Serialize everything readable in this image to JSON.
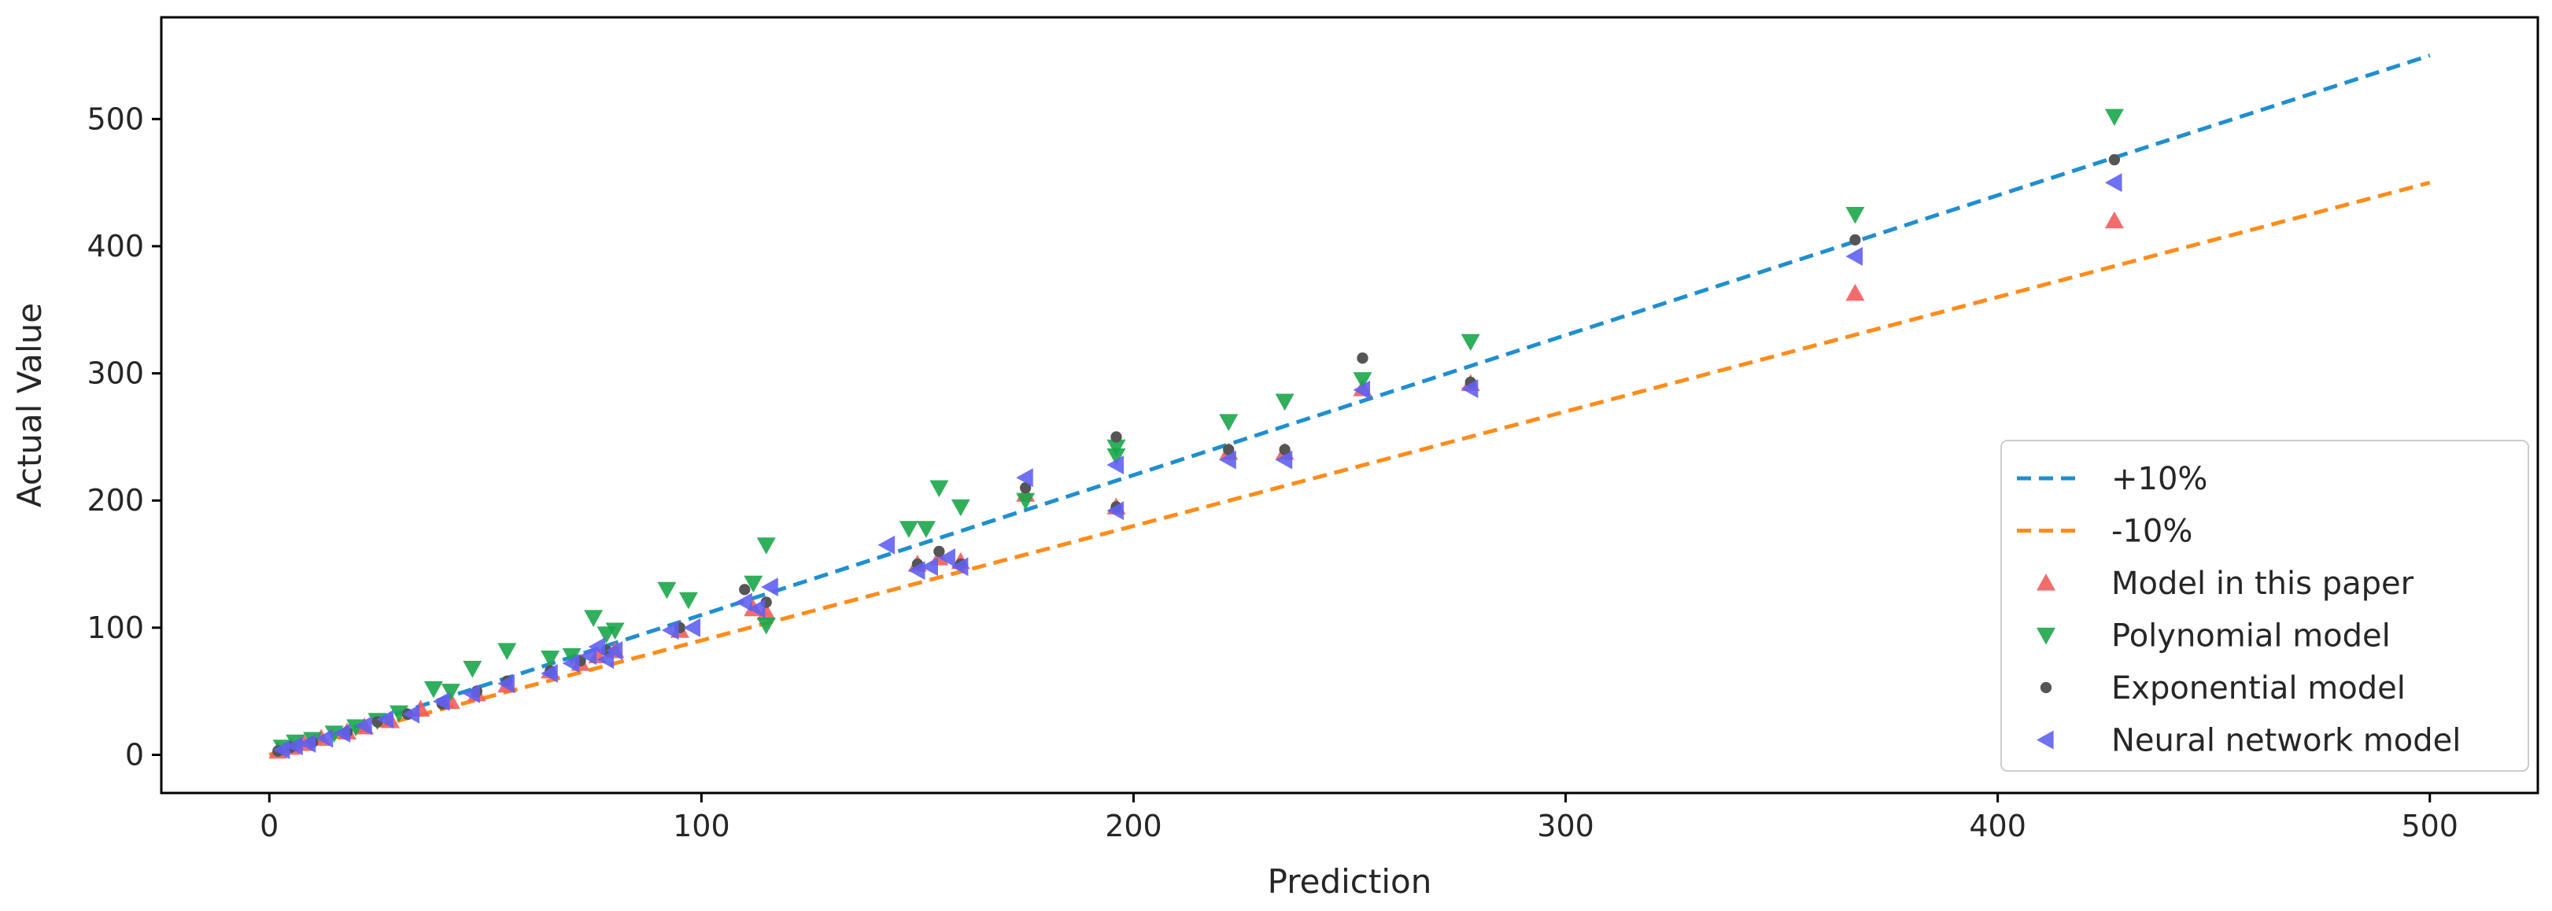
{
  "chart_data": {
    "type": "scatter",
    "title": "",
    "xlabel": "Prediction",
    "ylabel": "Actual Value",
    "xlim": [
      -25,
      525
    ],
    "ylim": [
      -30,
      580
    ],
    "xticks": [
      "0",
      "100",
      "200",
      "300",
      "400",
      "500"
    ],
    "yticks": [
      "0",
      "100",
      "200",
      "300",
      "400",
      "500"
    ],
    "grid": false,
    "legend_position": "lower-right",
    "series": [
      {
        "name": "+10%",
        "kind": "line",
        "color": "#1f8fcf",
        "style": "dashed",
        "x": [
          0,
          500
        ],
        "y": [
          0,
          550
        ]
      },
      {
        "name": "-10%",
        "kind": "line",
        "color": "#ff8c1a",
        "style": "dashed",
        "x": [
          0,
          500
        ],
        "y": [
          0,
          450
        ]
      },
      {
        "name": "Model in this paper",
        "kind": "scatter",
        "marker": "triangle-up",
        "color": "#f25c5c",
        "x": [
          2,
          5,
          8,
          12,
          18,
          22,
          28,
          35,
          42,
          48,
          55,
          65,
          72,
          76,
          80,
          95,
          112,
          115,
          150,
          155,
          160,
          175,
          196,
          222,
          235,
          253,
          278,
          367,
          427
        ],
        "y": [
          3,
          6,
          9,
          13,
          18,
          22,
          27,
          36,
          42,
          48,
          55,
          66,
          72,
          78,
          82,
          98,
          115,
          112,
          150,
          155,
          152,
          205,
          195,
          238,
          238,
          288,
          292,
          363,
          420
        ]
      },
      {
        "name": "Polynomial model",
        "kind": "scatter",
        "marker": "triangle-down",
        "color": "#1aa64a",
        "x": [
          3,
          6,
          10,
          15,
          20,
          25,
          30,
          38,
          42,
          47,
          55,
          65,
          70,
          75,
          78,
          80,
          92,
          97,
          112,
          115,
          115,
          148,
          152,
          155,
          160,
          175,
          196,
          196,
          222,
          235,
          253,
          278,
          367,
          427
        ],
        "y": [
          6,
          10,
          12,
          17,
          22,
          27,
          33,
          52,
          50,
          68,
          82,
          76,
          78,
          108,
          95,
          98,
          130,
          122,
          135,
          165,
          102,
          178,
          178,
          210,
          195,
          200,
          235,
          242,
          262,
          278,
          295,
          325,
          425,
          502
        ]
      },
      {
        "name": "Exponential model",
        "kind": "scatter",
        "marker": "dot",
        "color": "#555555",
        "x": [
          2,
          5,
          10,
          18,
          25,
          32,
          40,
          48,
          55,
          65,
          72,
          78,
          95,
          110,
          115,
          150,
          155,
          160,
          175,
          196,
          196,
          222,
          235,
          253,
          278,
          367,
          427
        ],
        "y": [
          3,
          6,
          10,
          18,
          26,
          32,
          40,
          50,
          58,
          66,
          74,
          82,
          100,
          130,
          120,
          150,
          160,
          150,
          210,
          250,
          195,
          240,
          240,
          312,
          293,
          405,
          468
        ]
      },
      {
        "name": "Neural network model",
        "kind": "scatter",
        "marker": "triangle-left",
        "color": "#6060f2",
        "x": [
          3,
          6,
          9,
          13,
          17,
          22,
          27,
          33,
          40,
          47,
          55,
          65,
          70,
          74,
          76,
          78,
          80,
          93,
          98,
          110,
          113,
          116,
          143,
          150,
          153,
          157,
          160,
          175,
          196,
          196,
          222,
          235,
          253,
          278,
          367,
          427
        ],
        "y": [
          4,
          7,
          9,
          13,
          17,
          23,
          28,
          32,
          42,
          48,
          56,
          64,
          72,
          78,
          85,
          75,
          82,
          98,
          100,
          120,
          115,
          132,
          165,
          145,
          148,
          155,
          148,
          218,
          228,
          192,
          232,
          232,
          287,
          288,
          392,
          450
        ]
      }
    ]
  }
}
